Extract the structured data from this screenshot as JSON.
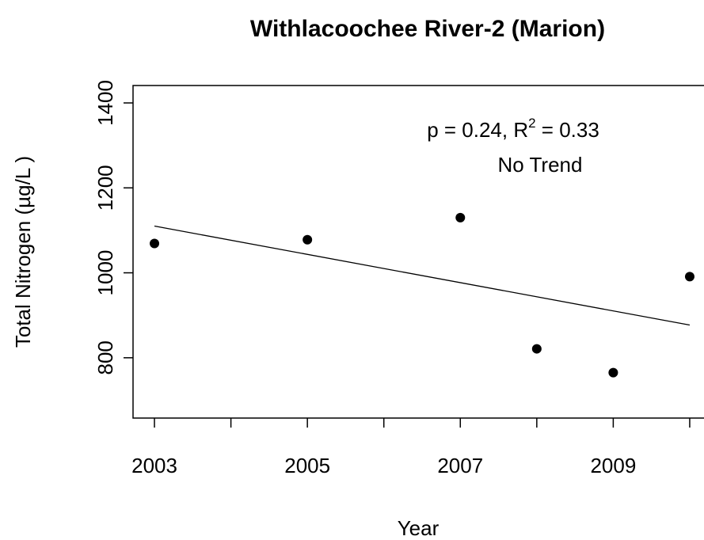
{
  "chart_data": {
    "type": "scatter",
    "title": "Withlacoochee River-2 (Marion)",
    "x_label": "Year",
    "y_label": "Total Nitrogen (µg/L )",
    "x": [
      2003,
      2005,
      2007,
      2008,
      2009,
      2010
    ],
    "values": [
      1069,
      1078,
      1130,
      821,
      765,
      991
    ],
    "color": "#000000",
    "xlim": [
      2002.72,
      2010.28
    ],
    "ylim": [
      658,
      1441
    ],
    "xticks": [
      2003,
      2005,
      2007,
      2009
    ],
    "minor_xticks": [
      2004,
      2006,
      2008,
      2010
    ],
    "yticks": [
      800,
      1000,
      1200,
      1400
    ],
    "trend": {
      "x": [
        2003,
        2010
      ],
      "values": [
        1110,
        877
      ]
    },
    "annotation": {
      "text": "p = 0.24, R",
      "superscript": "2",
      "rest": " = 0.33",
      "note": "No Trend"
    }
  }
}
